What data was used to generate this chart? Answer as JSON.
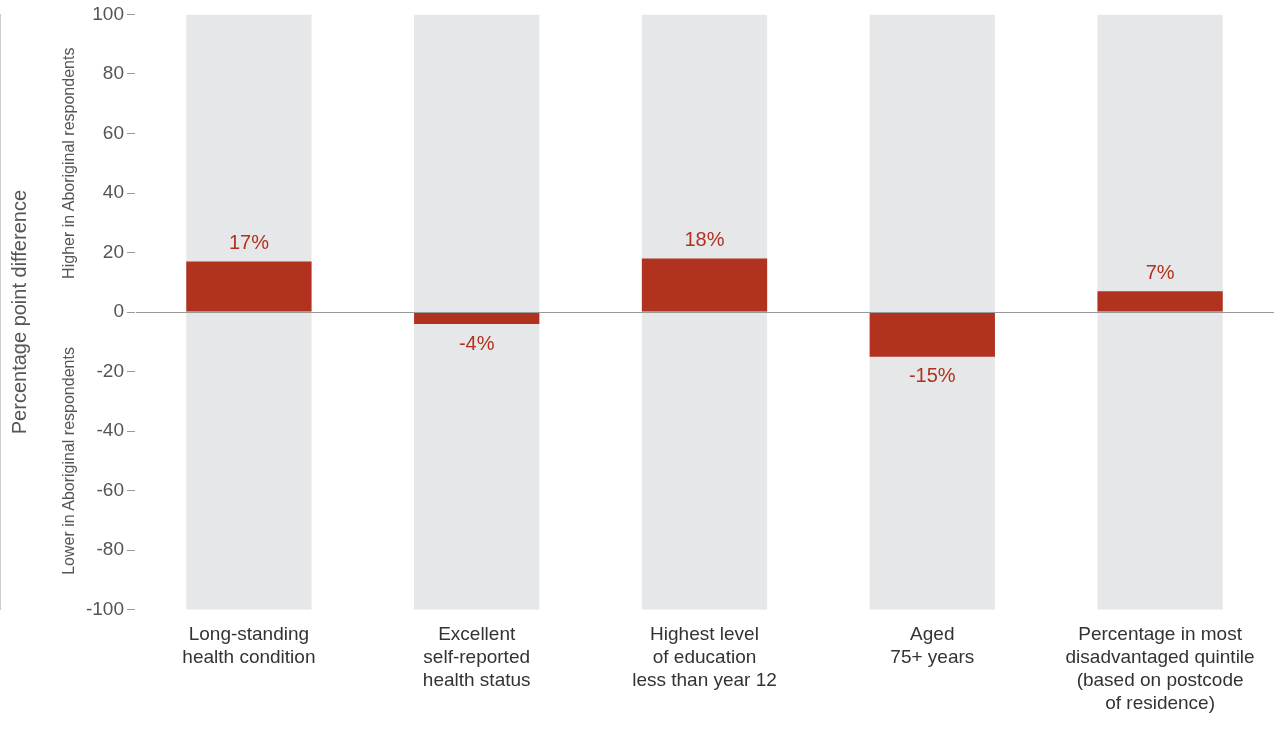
{
  "chart_data": {
    "type": "bar",
    "ylabel": "Percentage point difference",
    "categories": [
      "Long-standing\nhealth condition",
      "Excellent\nself-reported\nhealth status",
      "Highest level\nof education\nless than year 12",
      "Aged\n75+ years",
      "Percentage in most\ndisadvantaged quintile\n(based on postcode\nof residence)"
    ],
    "series": [
      {
        "color": "#e6e7e8",
        "base": [
          -100,
          -100,
          -100,
          -100,
          -100
        ],
        "values": [
          200,
          200,
          200,
          200,
          200
        ]
      },
      {
        "color": "#b0321f",
        "values": [
          17,
          -4,
          18,
          -15,
          7
        ],
        "value_labels": [
          "17%",
          "-4%",
          "18%",
          "-15%",
          "7%"
        ]
      }
    ],
    "ylim": [
      -100,
      100
    ],
    "yticks": [
      -100,
      -80,
      -60,
      -40,
      -20,
      0,
      20,
      40,
      60,
      80,
      100
    ],
    "annotations": [
      "Higher in Aboriginal respondents",
      "Lower in Aboriginal respondents"
    ]
  }
}
